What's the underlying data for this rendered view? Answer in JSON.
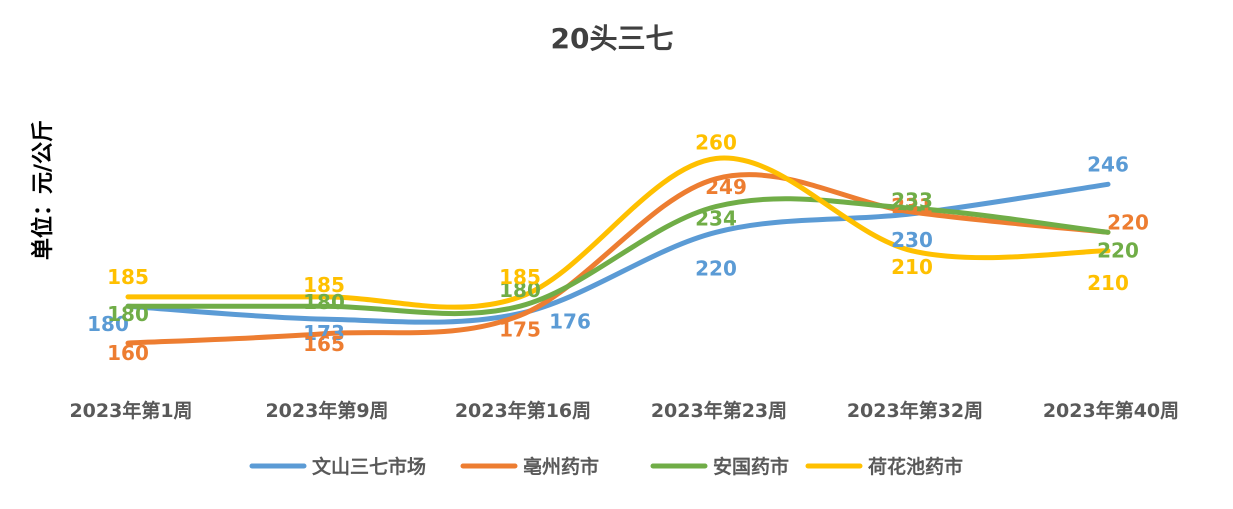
{
  "chart_data": {
    "type": "line",
    "title": "20头三七",
    "ylabel": "单位：元/公斤",
    "xlabel": "",
    "categories": [
      "2023年第1周",
      "2023年第9周",
      "2023年第16周",
      "2023年第23周",
      "2023年第32周",
      "2023年第40周"
    ],
    "ylim": [
      140,
      270
    ],
    "smooth": true,
    "grid": false,
    "legend_position": "bottom",
    "series": [
      {
        "name": "文山三七市场",
        "color": "#5B9BD5",
        "values": [
          180,
          173,
          176,
          220,
          230,
          246
        ]
      },
      {
        "name": "亳州药市",
        "color": "#ED7D31",
        "values": [
          160,
          165,
          175,
          249,
          231,
          220
        ]
      },
      {
        "name": "安国药市",
        "color": "#70AD47",
        "values": [
          180,
          180,
          180,
          234,
          233,
          220
        ]
      },
      {
        "name": "荷花池药市",
        "color": "#FFC000",
        "values": [
          185,
          185,
          185,
          260,
          210,
          210
        ]
      }
    ]
  }
}
